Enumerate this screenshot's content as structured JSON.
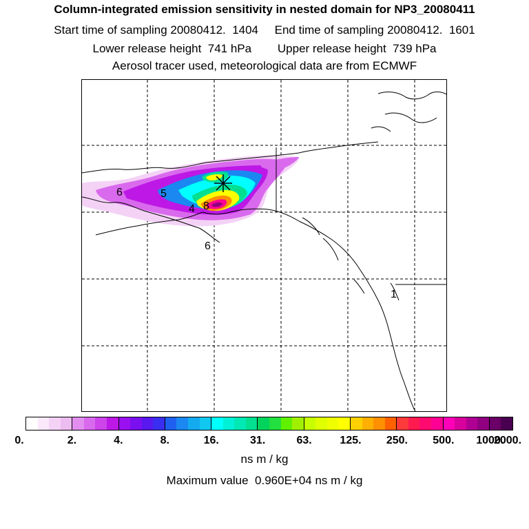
{
  "title": {
    "line1": "Column-integrated emission sensitivity in nested domain for NP3_20080411",
    "line2": "Start time of sampling 20080412.  1404     End time of sampling 20080412.  1601",
    "line3": "Lower release height  741 hPa        Upper release height  739 hPa",
    "line4": "Aerosol tracer used, meteorological data are from ECMWF"
  },
  "map": {
    "region": "Alaska, western Canada and Pacific Northwest",
    "projection": "latitude-longitude grid",
    "grid_style": "dashed",
    "release_marker": "star-marker",
    "plume_labels": [
      "6",
      "5",
      "4",
      "6",
      "8",
      "1"
    ]
  },
  "colorbar": {
    "tick_labels": [
      "0.",
      "2.",
      "4.",
      "8.",
      "16.",
      "31.",
      "63.",
      "125.",
      "250.",
      "500.",
      "1000.",
      "2000."
    ],
    "segments": [
      [
        "#ffffff",
        "#fbe8fb",
        "#f4d2f6",
        "#edbcf1"
      ],
      [
        "#e28ef0",
        "#d96aed",
        "#cc44ea",
        "#bd18e6"
      ],
      [
        "#9a10f0",
        "#7a10f0",
        "#5a18f0",
        "#3a2ef0"
      ],
      [
        "#1e60f0",
        "#1a88f0",
        "#14aaf0",
        "#10c8f0"
      ],
      [
        "#00ffff",
        "#00f0d8",
        "#00e8b4",
        "#00e090"
      ],
      [
        "#00d45c",
        "#22e040",
        "#60f000",
        "#a0f000"
      ],
      [
        "#c8ff00",
        "#e0ff00",
        "#f0ff00",
        "#ffff00"
      ],
      [
        "#ffd000",
        "#ffb000",
        "#ff9000",
        "#ff6000"
      ],
      [
        "#ff3a3a",
        "#ff1a50",
        "#ff0a70",
        "#ff0094"
      ],
      [
        "#ff00b8",
        "#d8009c",
        "#b00094",
        "#900080"
      ],
      [
        "#6a0068",
        "#4a0050"
      ]
    ],
    "units": "ns m / kg"
  },
  "maximum_value_text": "Maximum value  0.960E+04 ns m / kg"
}
